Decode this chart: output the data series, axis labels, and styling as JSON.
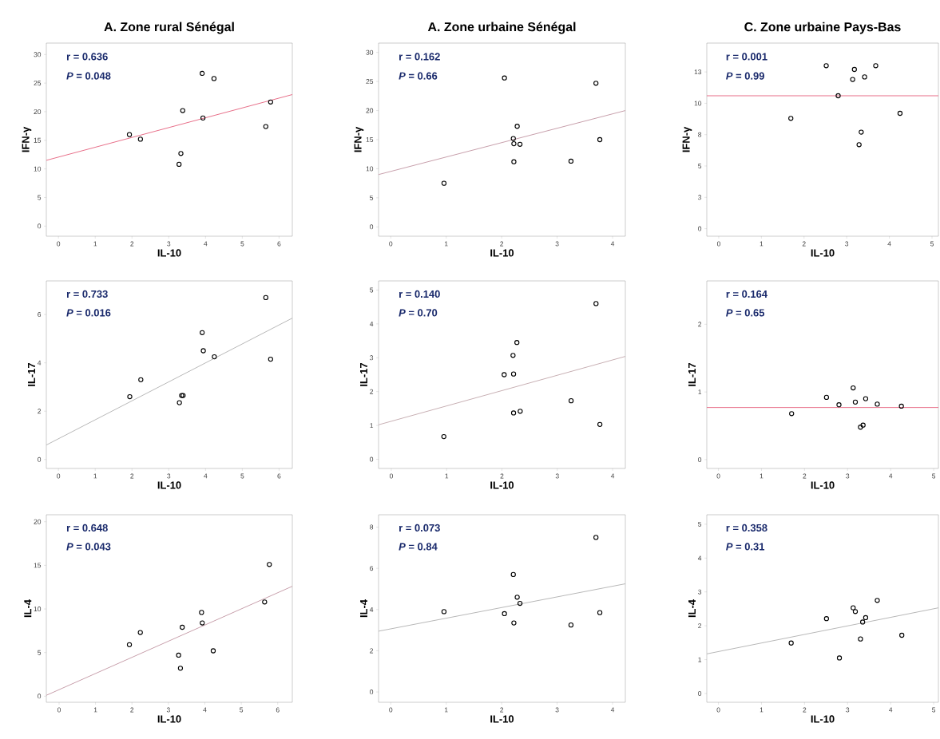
{
  "chart_data": [
    {
      "type": "scatter",
      "title": "A. Zone rural Sénégal",
      "xlabel": "IL-10",
      "ylabel": "IFN-γ",
      "xlim": [
        -0.33,
        6.36
      ],
      "ylim": [
        -1.77,
        32.0
      ],
      "xticks": [
        0,
        1,
        2,
        3,
        4,
        5,
        6
      ],
      "yticks": [
        0,
        5,
        10,
        15,
        20,
        25,
        30
      ],
      "annotations": [
        "r = 0.636",
        "*P* = 0.048"
      ],
      "series": [
        {
          "marker": "circle",
          "color": "#000000",
          "x": [
            1.93,
            2.23,
            3.28,
            3.33,
            3.38,
            3.91,
            3.93,
            4.23,
            5.64,
            5.77
          ],
          "values": [
            16.0,
            15.2,
            10.8,
            12.7,
            20.2,
            26.7,
            18.9,
            25.8,
            17.4,
            21.7
          ]
        },
        {
          "type": "line",
          "color": "#e8708a",
          "x": [
            -0.33,
            6.36
          ],
          "values": [
            11.5,
            23.0
          ]
        }
      ]
    },
    {
      "type": "scatter",
      "title": "A. Zone urbaine Sénégal",
      "xlabel": "IL-10",
      "ylabel": "IFN-γ",
      "xlim": [
        -0.22,
        4.23
      ],
      "ylim": [
        -1.6,
        31.6
      ],
      "xticks": [
        0,
        1,
        2,
        3,
        4
      ],
      "yticks": [
        0,
        5,
        10,
        15,
        20,
        25,
        30
      ],
      "annotations": [
        "r = 0.162",
        "*P* = 0.66"
      ],
      "series": [
        {
          "marker": "circle",
          "color": "#000000",
          "x": [
            0.96,
            2.05,
            2.21,
            2.22,
            2.22,
            2.28,
            2.33,
            3.25,
            3.7,
            3.77
          ],
          "values": [
            7.5,
            25.6,
            15.2,
            14.3,
            11.2,
            17.3,
            14.2,
            11.3,
            24.7,
            15.0
          ]
        },
        {
          "type": "line",
          "color": "#c8a0ac",
          "x": [
            -0.22,
            4.23
          ],
          "values": [
            9.0,
            20.0
          ]
        }
      ]
    },
    {
      "type": "scatter",
      "title": "C. Zone urbaine Pays-Bas",
      "xlabel": "IL-10",
      "ylabel": "IFN-γ",
      "xlim": [
        -0.28,
        5.15
      ],
      "ylim": [
        -0.6,
        14.8
      ],
      "xticks": [
        0,
        1,
        2,
        3,
        4,
        5
      ],
      "yticks": [
        0,
        {
          "value": 2.5,
          "label": "3"
        },
        5,
        {
          "value": 7.5,
          "label": "8"
        },
        10,
        {
          "value": 12.5,
          "label": "13"
        }
      ],
      "annotations": [
        "r = 0.001",
        "*P* = 0.99"
      ],
      "series": [
        {
          "marker": "circle",
          "color": "#000000",
          "x": [
            2.52,
            2.8,
            1.69,
            3.14,
            3.18,
            3.42,
            3.68,
            3.34,
            3.29,
            4.25
          ],
          "values": [
            13.0,
            10.6,
            8.8,
            11.9,
            12.7,
            12.1,
            13.0,
            7.7,
            6.7,
            9.2
          ]
        },
        {
          "type": "line",
          "color": "#e8708a",
          "x": [
            -0.28,
            5.15
          ],
          "values": [
            10.6,
            10.6
          ]
        }
      ]
    },
    {
      "type": "scatter",
      "xlabel": "IL-10",
      "ylabel": "IL-17",
      "xlim": [
        -0.33,
        6.36
      ],
      "ylim": [
        -0.37,
        7.39
      ],
      "xticks": [
        0,
        1,
        2,
        3,
        4,
        5,
        6
      ],
      "yticks": [
        0,
        2,
        4,
        6
      ],
      "annotations": [
        "r = 0.733",
        "*P* = 0.016"
      ],
      "series": [
        {
          "marker": "circle",
          "color": "#000000",
          "x": [
            1.94,
            2.24,
            3.29,
            3.35,
            3.39,
            3.91,
            3.94,
            4.24,
            5.64,
            5.77
          ],
          "values": [
            2.6,
            3.3,
            2.35,
            2.65,
            2.65,
            5.25,
            4.5,
            4.25,
            6.7,
            4.15
          ]
        },
        {
          "type": "line",
          "color": "#b8b8b8",
          "x": [
            -0.33,
            6.36
          ],
          "values": [
            0.6,
            5.85
          ]
        }
      ]
    },
    {
      "type": "scatter",
      "xlabel": "IL-10",
      "ylabel": "IL-17",
      "xlim": [
        -0.23,
        4.23
      ],
      "ylim": [
        -0.27,
        5.27
      ],
      "xticks": [
        0,
        1,
        2,
        3,
        4
      ],
      "yticks": [
        0,
        1,
        2,
        3,
        4,
        5
      ],
      "annotations": [
        "r = 0.140",
        "*P* = 0.70"
      ],
      "series": [
        {
          "marker": "circle",
          "color": "#000000",
          "x": [
            0.95,
            2.04,
            2.2,
            2.21,
            2.27,
            2.21,
            2.33,
            3.25,
            3.7,
            3.77
          ],
          "values": [
            0.67,
            2.5,
            3.07,
            2.52,
            3.45,
            1.37,
            1.42,
            1.73,
            4.6,
            1.03
          ]
        },
        {
          "type": "line",
          "color": "#c8b0b4",
          "x": [
            -0.23,
            4.23
          ],
          "values": [
            1.02,
            3.04
          ]
        }
      ]
    },
    {
      "type": "scatter",
      "xlabel": "IL-10",
      "ylabel": "IL-17",
      "xlim": [
        -0.27,
        5.11
      ],
      "ylim": [
        -0.13,
        2.64
      ],
      "xticks": [
        0,
        1,
        2,
        3,
        4,
        5
      ],
      "yticks": [
        0,
        1,
        2
      ],
      "annotations": [
        "r = 0.164",
        "*P* = 0.65"
      ],
      "series": [
        {
          "marker": "circle",
          "color": "#000000",
          "x": [
            1.7,
            2.51,
            2.8,
            3.13,
            3.18,
            3.42,
            3.69,
            4.25,
            3.3,
            3.36
          ],
          "values": [
            0.68,
            0.92,
            0.81,
            1.06,
            0.85,
            0.9,
            0.82,
            0.79,
            0.48,
            0.51
          ]
        },
        {
          "type": "line",
          "color": "#e8708a",
          "x": [
            -0.27,
            5.11
          ],
          "values": [
            0.77,
            0.77
          ]
        }
      ]
    },
    {
      "type": "scatter",
      "xlabel": "IL-10",
      "ylabel": "IL-4",
      "xlim": [
        -0.35,
        6.4
      ],
      "ylim": [
        -0.7,
        20.8
      ],
      "xticks": [
        0,
        1,
        2,
        3,
        4,
        5,
        6
      ],
      "yticks": [
        0,
        5,
        10,
        15,
        20
      ],
      "annotations": [
        "r = 0.648",
        "*P* = 0.043"
      ],
      "series": [
        {
          "marker": "circle",
          "color": "#000000",
          "x": [
            1.93,
            2.23,
            3.28,
            3.33,
            3.38,
            3.91,
            3.93,
            4.23,
            5.64,
            5.77
          ],
          "values": [
            5.9,
            7.3,
            4.7,
            3.2,
            7.9,
            9.6,
            8.4,
            5.2,
            10.8,
            15.1
          ]
        },
        {
          "type": "line",
          "color": "#c8a0ac",
          "x": [
            -0.35,
            6.4
          ],
          "values": [
            0.1,
            12.6
          ]
        }
      ]
    },
    {
      "type": "scatter",
      "xlabel": "IL-10",
      "ylabel": "IL-4",
      "xlim": [
        -0.22,
        4.23
      ],
      "ylim": [
        -0.5,
        8.6
      ],
      "xticks": [
        0,
        1,
        2,
        3,
        4
      ],
      "yticks": [
        0,
        2,
        4,
        6,
        8
      ],
      "annotations": [
        "r = 0.073",
        "*P* = 0.84"
      ],
      "series": [
        {
          "marker": "circle",
          "color": "#000000",
          "x": [
            0.96,
            2.05,
            2.21,
            2.28,
            2.33,
            2.22,
            3.25,
            3.7,
            3.77
          ],
          "values": [
            3.9,
            3.8,
            5.7,
            4.6,
            4.3,
            3.35,
            3.25,
            7.5,
            3.85
          ]
        },
        {
          "type": "line",
          "color": "#b8b8b8",
          "x": [
            -0.22,
            4.23
          ],
          "values": [
            2.95,
            5.25
          ]
        }
      ]
    },
    {
      "type": "scatter",
      "xlabel": "IL-10",
      "ylabel": "IL-4",
      "xlim": [
        -0.27,
        5.11
      ],
      "ylim": [
        -0.26,
        5.28
      ],
      "xticks": [
        0,
        1,
        2,
        3,
        4,
        5
      ],
      "yticks": [
        0,
        1,
        2,
        3,
        4,
        5
      ],
      "annotations": [
        "r = 0.358",
        "*P* = 0.31"
      ],
      "series": [
        {
          "marker": "circle",
          "color": "#000000",
          "x": [
            1.69,
            2.51,
            2.81,
            3.13,
            3.18,
            3.35,
            3.42,
            3.3,
            3.69,
            4.26
          ],
          "values": [
            1.49,
            2.21,
            1.05,
            2.53,
            2.42,
            2.11,
            2.24,
            1.61,
            2.75,
            1.72
          ]
        },
        {
          "type": "line",
          "color": "#b8b8b8",
          "x": [
            -0.27,
            5.11
          ],
          "values": [
            1.17,
            2.53
          ]
        }
      ]
    }
  ]
}
